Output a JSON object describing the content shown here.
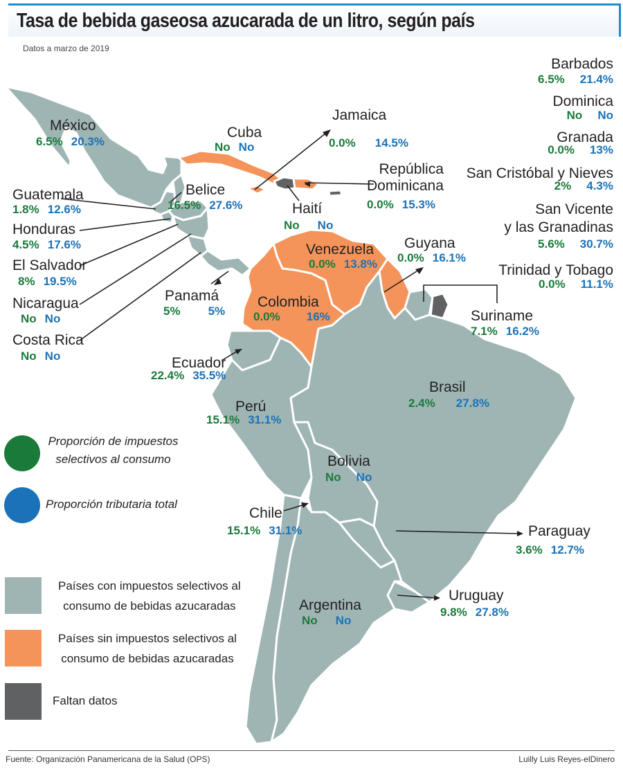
{
  "title": "Tasa de bebida gaseosa azucarada de un litro, según país",
  "subtitle": "Datos a marzo de 2019",
  "colors": {
    "with_tax": "#9eb5b4",
    "without_tax": "#f4945a",
    "no_data": "#5f6163",
    "excise": "#1a7a3a",
    "total": "#1a72b8",
    "border": "#ffffff"
  },
  "countries": [
    {
      "id": "mexico",
      "name": "México",
      "excise": "6.5%",
      "total": "20.3%",
      "category": "with_tax"
    },
    {
      "id": "cuba",
      "name": "Cuba",
      "excise": "No",
      "total": "No",
      "category": "without_tax"
    },
    {
      "id": "jamaica",
      "name": "Jamaica",
      "excise": "0.0%",
      "total": "14.5%",
      "category": "without_tax"
    },
    {
      "id": "republica_dominicana",
      "name": "República\nDominicana",
      "excise": "0.0%",
      "total": "15.3%",
      "category": "without_tax"
    },
    {
      "id": "haiti",
      "name": "Haití",
      "excise": "No",
      "total": "No",
      "category": "no_data"
    },
    {
      "id": "guatemala",
      "name": "Guatemala",
      "excise": "1.8%",
      "total": "12.6%",
      "category": "with_tax"
    },
    {
      "id": "belice",
      "name": "Belice",
      "excise": "16.5%",
      "total": "27.6%",
      "category": "with_tax"
    },
    {
      "id": "honduras",
      "name": "Honduras",
      "excise": "4.5%",
      "total": "17.6%",
      "category": "with_tax"
    },
    {
      "id": "el_salvador",
      "name": "El Salvador",
      "excise": "8%",
      "total": "19.5%",
      "category": "with_tax"
    },
    {
      "id": "nicaragua",
      "name": "Nicaragua",
      "excise": "No",
      "total": "No",
      "category": "with_tax"
    },
    {
      "id": "costa_rica",
      "name": "Costa Rica",
      "excise": "No",
      "total": "No",
      "category": "with_tax"
    },
    {
      "id": "panama",
      "name": "Panamá",
      "excise": "5%",
      "total": "5%",
      "category": "with_tax"
    },
    {
      "id": "venezuela",
      "name": "Venezuela",
      "excise": "0.0%",
      "total": "13.8%",
      "category": "without_tax"
    },
    {
      "id": "guyana",
      "name": "Guyana",
      "excise": "0.0%",
      "total": "16.1%",
      "category": "without_tax"
    },
    {
      "id": "colombia",
      "name": "Colombia",
      "excise": "0.0%",
      "total": "16%",
      "category": "without_tax"
    },
    {
      "id": "suriname",
      "name": "Suriname",
      "excise": "7.1%",
      "total": "16.2%",
      "category": "no_data"
    },
    {
      "id": "ecuador",
      "name": "Ecuador",
      "excise": "22.4%",
      "total": "35.5%",
      "category": "with_tax"
    },
    {
      "id": "brasil",
      "name": "Brasil",
      "excise": "2.4%",
      "total": "27.8%",
      "category": "with_tax"
    },
    {
      "id": "peru",
      "name": "Perú",
      "excise": "15.1%",
      "total": "31.1%",
      "category": "with_tax"
    },
    {
      "id": "bolivia",
      "name": "Bolivia",
      "excise": "No",
      "total": "No",
      "category": "with_tax"
    },
    {
      "id": "chile",
      "name": "Chile",
      "excise": "15.1%",
      "total": "31.1%",
      "category": "with_tax"
    },
    {
      "id": "paraguay",
      "name": "Paraguay",
      "excise": "3.6%",
      "total": "12.7%",
      "category": "with_tax"
    },
    {
      "id": "argentina",
      "name": "Argentina",
      "excise": "No",
      "total": "No",
      "category": "with_tax"
    },
    {
      "id": "uruguay",
      "name": "Uruguay",
      "excise": "9.8%",
      "total": "27.8%",
      "category": "with_tax"
    }
  ],
  "islands": [
    {
      "name": "Barbados",
      "excise": "6.5%",
      "total": "21.4%"
    },
    {
      "name": "Dominica",
      "excise": "No",
      "total": "No"
    },
    {
      "name": "Granada",
      "excise": "0.0%",
      "total": "13%"
    },
    {
      "name": "San Cristóbal y Nieves",
      "excise": "2%",
      "total": "4.3%"
    },
    {
      "name": "San Vicente\ny las Granadinas",
      "excise": "5.6%",
      "total": "30.7%"
    },
    {
      "name": "Trinidad y Tobago",
      "excise": "0.0%",
      "total": "11.1%"
    }
  ],
  "legend": {
    "excise_label": "Proporción de impuestos\nselectivos al consumo",
    "total_label": "Proporción tributaria total",
    "with_tax_label": "Países con impuestos selectivos al\nconsumo de bebidas azucaradas",
    "without_tax_label": "Países sin impuestos selectivos al\nconsumo de bebidas azucaradas",
    "no_data_label": "Faltan datos"
  },
  "source": "Fuente: Organización Panamericana de la Salud (OPS)",
  "credit": "Luilly Luis Reyes-elDinero"
}
